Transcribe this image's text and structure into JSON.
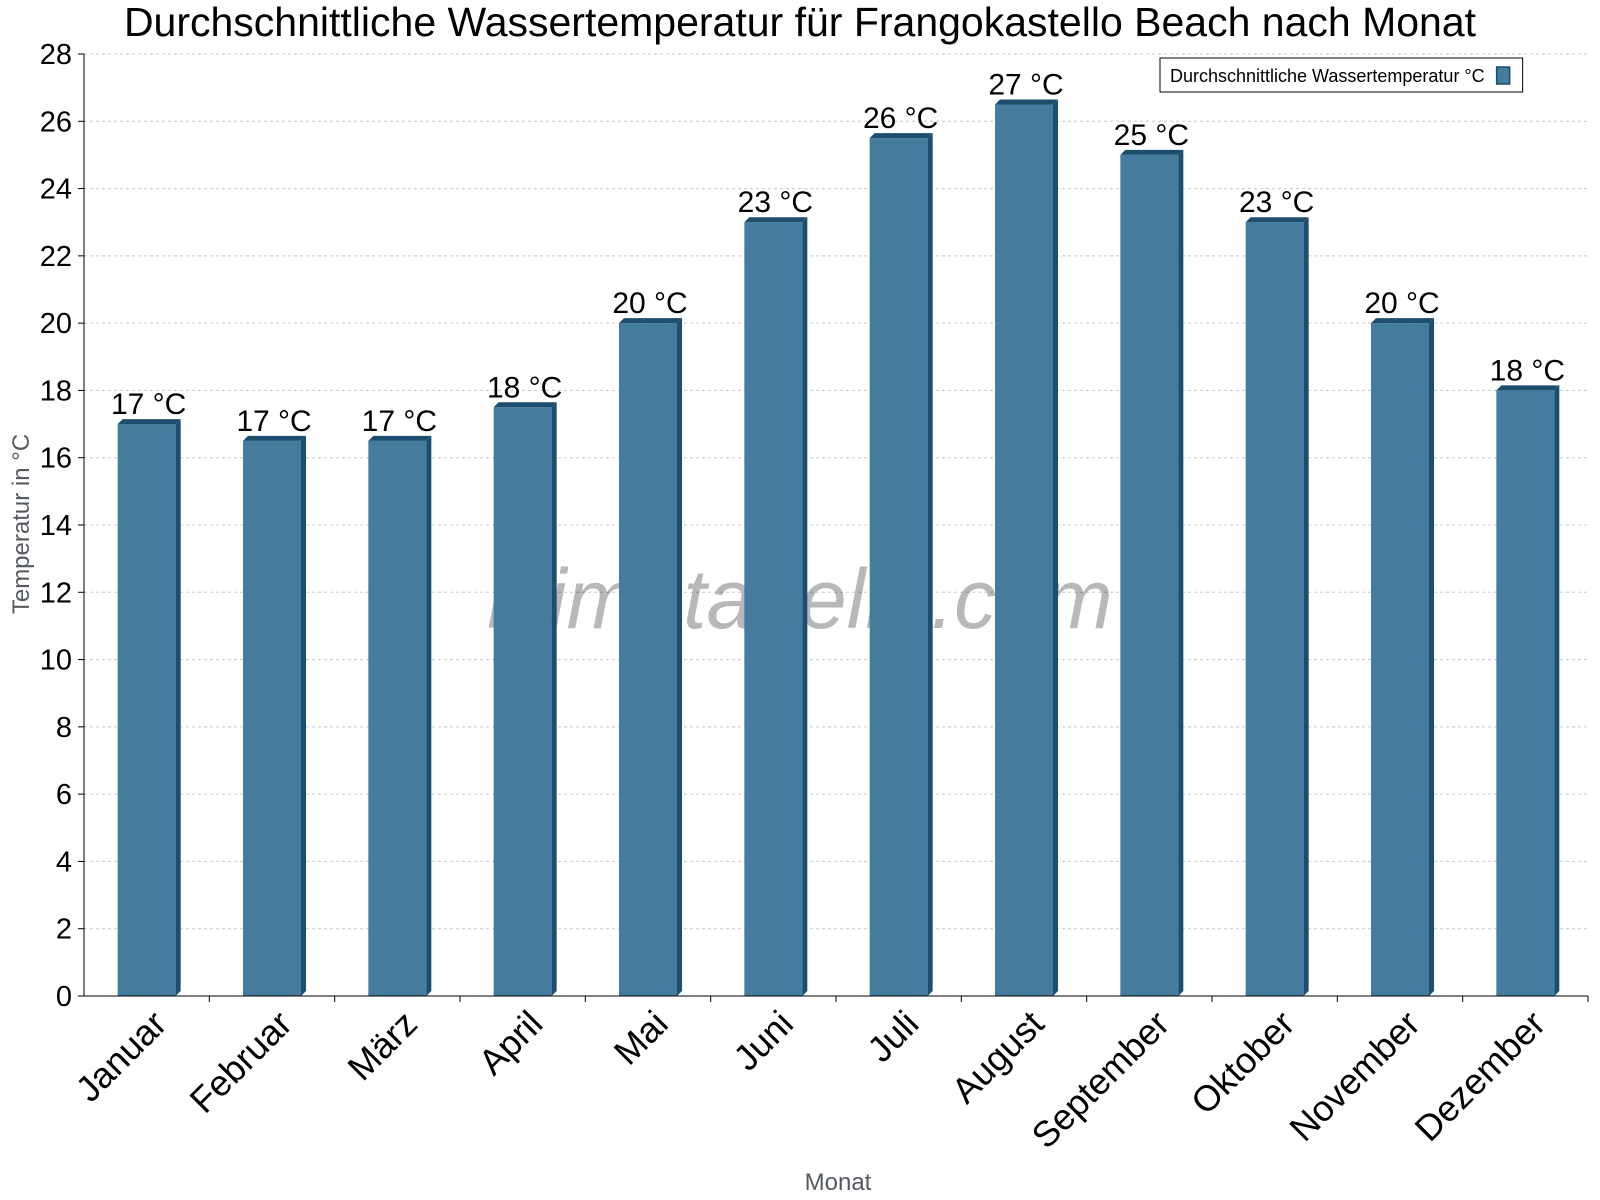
{
  "chart_data": {
    "type": "bar",
    "title": "Durchschnittliche Wassertemperatur für Frangokastello Beach nach Monat",
    "xlabel": "Monat",
    "ylabel": "Temperatur in °C",
    "categories": [
      "Januar",
      "Februar",
      "März",
      "April",
      "Mai",
      "Juni",
      "Juli",
      "August",
      "September",
      "Oktober",
      "November",
      "Dezember"
    ],
    "series": [
      {
        "name": "Durchschnittliche Wassertemperatur °C",
        "values": [
          17,
          16.5,
          16.5,
          17.5,
          20,
          23,
          25.5,
          26.5,
          25,
          23,
          20,
          18
        ],
        "labels": [
          "17 °C",
          "17 °C",
          "17 °C",
          "18 °C",
          "20 °C",
          "23 °C",
          "26 °C",
          "27 °C",
          "25 °C",
          "23 °C",
          "20 °C",
          "18 °C"
        ]
      }
    ],
    "ylim": [
      0,
      28
    ],
    "yticks": [
      0,
      2,
      4,
      6,
      8,
      10,
      12,
      14,
      16,
      18,
      20,
      22,
      24,
      26,
      28
    ],
    "grid": true,
    "legend_position": "top-right",
    "colors": {
      "bar": "#457b9d",
      "bar_side": "#1d4e6e",
      "bar_top": "#1d4e6e",
      "grid": "#c8c8c8",
      "axis": "#000000"
    }
  },
  "watermark": "klimatabelle.com"
}
